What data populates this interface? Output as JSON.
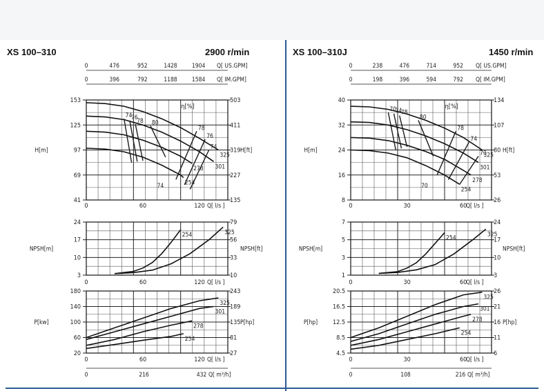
{
  "chart_data": [
    {
      "type": "line",
      "title": "XS 100–310",
      "speed": "2900 r/min",
      "head": {
        "x_unit": "Q[ l/s ]",
        "x_ticks": [
          "0",
          "60",
          "120"
        ],
        "x_range": [
          0,
          150
        ],
        "top_axis1_label": "Q[ US.GPM]",
        "top_axis1_ticks": [
          "0",
          "476",
          "952",
          "1428",
          "1904"
        ],
        "top_axis2_label": "Q[ IM.GPM]",
        "top_axis2_ticks": [
          "0",
          "396",
          "792",
          "1188",
          "1584"
        ],
        "ylabel_left": "H[m]",
        "y_ticks_left": [
          "153",
          "125",
          "97",
          "69",
          "41"
        ],
        "y_range": [
          41,
          153
        ],
        "ylabel_right": "H[ft]",
        "y_ticks_right": [
          "503",
          "411",
          "319",
          "227",
          "135"
        ],
        "eff_label": "η[%]",
        "series": [
          {
            "name": "325",
            "x": [
              0,
              20,
              40,
              60,
              80,
              100,
              120,
              140
            ],
            "y": [
              150,
              149,
              146,
              140,
              132,
              122,
              110,
              97
            ]
          },
          {
            "name": "301",
            "x": [
              0,
              20,
              40,
              60,
              80,
              100,
              120,
              135
            ],
            "y": [
              135,
              134,
              131,
              125,
              117,
              107,
              95,
              84
            ]
          },
          {
            "name": "278",
            "x": [
              0,
              20,
              40,
              60,
              80,
              100,
              112
            ],
            "y": [
              118,
              117,
              114,
              108,
              100,
              90,
              82
            ]
          },
          {
            "name": "254",
            "x": [
              0,
              20,
              40,
              60,
              80,
              100,
              103
            ],
            "y": [
              99,
              98,
              95,
              89,
              80,
              69,
              66
            ]
          }
        ],
        "eff_curves": [
          {
            "label": "74",
            "x": [
              40,
              48
            ],
            "y": [
              132,
              83
            ]
          },
          {
            "label": "76",
            "x": [
              46,
              54
            ],
            "y": [
              130,
              84
            ]
          },
          {
            "label": "78",
            "x": [
              52,
              60
            ],
            "y": [
              126,
              85
            ]
          },
          {
            "label": "80",
            "x": [
              68,
              84
            ],
            "y": [
              124,
              89
            ]
          },
          {
            "label": "78",
            "x": [
              117,
              95
            ],
            "y": [
              118,
              64
            ]
          },
          {
            "label": "76",
            "x": [
              126,
              104
            ],
            "y": [
              109,
              58
            ]
          },
          {
            "label": "74",
            "x": [
              130,
              110
            ],
            "y": [
              97,
              53
            ]
          }
        ],
        "eff_label_lower": "74"
      },
      "npsh": {
        "x_unit": "Q[ l/s ]",
        "x_ticks": [
          "0",
          "60",
          "120"
        ],
        "x_range": [
          0,
          150
        ],
        "ylabel_left": "NPSH[m]",
        "y_ticks_left": [
          "24",
          "17",
          "10",
          "3"
        ],
        "y_range": [
          3,
          24
        ],
        "ylabel_right": "NPSH[ft]",
        "y_ticks_right": [
          "79",
          "56",
          "33",
          "10"
        ],
        "series": [
          {
            "name": "254",
            "x": [
              30,
              50,
              60,
              70,
              80,
              90,
              100
            ],
            "y": [
              3.6,
              4.5,
              5.8,
              8,
              11.5,
              16,
              21
            ]
          },
          {
            "name": "325",
            "x": [
              30,
              50,
              70,
              90,
              110,
              130,
              145
            ],
            "y": [
              3.6,
              4,
              5,
              7.5,
              11.5,
              17,
              22
            ]
          }
        ]
      },
      "power": {
        "x_unit": "Q[ l/s ]",
        "x_ticks": [
          "0",
          "60",
          "120"
        ],
        "x_range": [
          0,
          150
        ],
        "bottom_axis_label": "Q[ m³/h]",
        "bottom_axis_ticks": [
          "0",
          "216",
          "432"
        ],
        "ylabel_left": "P[kw]",
        "y_ticks_left": [
          "180",
          "140",
          "100",
          "60",
          "20"
        ],
        "y_range": [
          20,
          180
        ],
        "ylabel_right": "P[hp]",
        "y_ticks_right": [
          "243",
          "189",
          "135",
          "81",
          "27"
        ],
        "series": [
          {
            "name": "325",
            "x": [
              0,
              30,
              60,
              90,
              120,
              140
            ],
            "y": [
              60,
              85,
              110,
              135,
              155,
              162
            ]
          },
          {
            "name": "301",
            "x": [
              0,
              30,
              60,
              90,
              120,
              135
            ],
            "y": [
              55,
              75,
              95,
              115,
              135,
              140
            ]
          },
          {
            "name": "278",
            "x": [
              0,
              30,
              60,
              90,
              112
            ],
            "y": [
              40,
              55,
              75,
              92,
              103
            ]
          },
          {
            "name": "254",
            "x": [
              0,
              30,
              60,
              90,
              103
            ],
            "y": [
              32,
              42,
              53,
              63,
              70
            ]
          }
        ]
      }
    },
    {
      "type": "line",
      "title": "XS 100–310J",
      "speed": "1450 r/min",
      "head": {
        "x_unit": "Q[ l/s ]",
        "x_ticks": [
          "0",
          "30",
          "60"
        ],
        "x_range": [
          0,
          75
        ],
        "top_axis1_label": "Q[ US.GPM]",
        "top_axis1_ticks": [
          "0",
          "238",
          "476",
          "714",
          "952"
        ],
        "top_axis2_label": "Q[ IM.GPM]",
        "top_axis2_ticks": [
          "0",
          "198",
          "396",
          "594",
          "792"
        ],
        "ylabel_left": "H[m]",
        "y_ticks_left": [
          "40",
          "32",
          "24",
          "16",
          "8"
        ],
        "y_range": [
          8,
          40
        ],
        "ylabel_right": "H[ft]",
        "y_ticks_right": [
          "134",
          "107",
          "80",
          "53",
          "26"
        ],
        "eff_label": "η[%]",
        "series": [
          {
            "name": "325",
            "x": [
              0,
              10,
              20,
              30,
              40,
              50,
              60,
              70
            ],
            "y": [
              38,
              37.8,
              37,
              35.5,
              33.5,
              31,
              28,
              24
            ]
          },
          {
            "name": "301",
            "x": [
              0,
              10,
              20,
              30,
              40,
              50,
              60,
              68
            ],
            "y": [
              33,
              32.8,
              32,
              30.5,
              28.5,
              26,
              23,
              20
            ]
          },
          {
            "name": "278",
            "x": [
              0,
              10,
              20,
              30,
              40,
              50,
              60,
              64
            ],
            "y": [
              28,
              27.8,
              27,
              25.5,
              23.5,
              21,
              17.5,
              16
            ]
          },
          {
            "name": "254",
            "x": [
              0,
              10,
              20,
              30,
              40,
              50,
              58
            ],
            "y": [
              24,
              23.8,
              23,
              21.5,
              19,
              16,
              13
            ]
          }
        ],
        "eff_curves": [
          {
            "label": "70",
            "x": [
              20,
              24
            ],
            "y": [
              36,
              24
            ]
          },
          {
            "label": "74",
            "x": [
              23,
              27
            ],
            "y": [
              35.6,
              24.5
            ]
          },
          {
            "label": "78",
            "x": [
              26,
              30
            ],
            "y": [
              35,
              25
            ]
          },
          {
            "label": "80",
            "x": [
              36,
              44
            ],
            "y": [
              33.5,
              22
            ]
          },
          {
            "label": "78",
            "x": [
              56,
              46
            ],
            "y": [
              30,
              16
            ]
          },
          {
            "label": "74",
            "x": [
              63,
              52
            ],
            "y": [
              26.5,
              14.5
            ]
          },
          {
            "label": "70",
            "x": [
              68,
              58
            ],
            "y": [
              22,
              13
            ]
          }
        ],
        "eff_label_lower": "70"
      },
      "npsh": {
        "x_unit": "Q[ l/s ]",
        "x_ticks": [
          "0",
          "30",
          "60"
        ],
        "x_range": [
          0,
          75
        ],
        "ylabel_left": "NPSH[m]",
        "y_ticks_left": [
          "7",
          "5",
          "3",
          "1"
        ],
        "y_range": [
          1,
          7
        ],
        "ylabel_right": "NPSH[ft]",
        "y_ticks_right": [
          "24",
          "17",
          "10",
          "3"
        ],
        "series": [
          {
            "name": "254",
            "x": [
              15,
              25,
              30,
              35,
              40,
              45,
              50
            ],
            "y": [
              1.2,
              1.4,
              1.8,
              2.4,
              3.4,
              4.6,
              5.8
            ]
          },
          {
            "name": "325",
            "x": [
              15,
              25,
              35,
              45,
              55,
              65,
              72
            ],
            "y": [
              1.2,
              1.3,
              1.6,
              2.2,
              3.4,
              5,
              6.2
            ]
          }
        ]
      },
      "power": {
        "x_unit": "Q[ l/s ]",
        "x_ticks": [
          "0",
          "30",
          "60"
        ],
        "x_range": [
          0,
          75
        ],
        "bottom_axis_label": "Q[ m³/h]",
        "bottom_axis_ticks": [
          "0",
          "108",
          "216"
        ],
        "ylabel_left": "P[hp]",
        "y_ticks_left": [
          "20.5",
          "16.5",
          "12.5",
          "8.5",
          "4.5"
        ],
        "y_range": [
          4.5,
          20.5
        ],
        "ylabel_right": "P[hp]",
        "y_ticks_right": [
          "26",
          "21",
          "16",
          "11",
          "6"
        ],
        "series": [
          {
            "name": "325",
            "x": [
              0,
              15,
              30,
              45,
              60,
              70
            ],
            "y": [
              8.5,
              11,
              14,
              17,
              19.5,
              20.2
            ]
          },
          {
            "name": "301",
            "x": [
              0,
              15,
              30,
              45,
              60,
              68
            ],
            "y": [
              7.5,
              9.5,
              12,
              14.5,
              16.5,
              17.2
            ]
          },
          {
            "name": "278",
            "x": [
              0,
              15,
              30,
              45,
              60,
              64
            ],
            "y": [
              6.5,
              8,
              10,
              12,
              14,
              14.5
            ]
          },
          {
            "name": "254",
            "x": [
              0,
              15,
              30,
              45,
              58
            ],
            "y": [
              5.5,
              6.5,
              8,
              9.5,
              11
            ]
          }
        ]
      }
    }
  ]
}
